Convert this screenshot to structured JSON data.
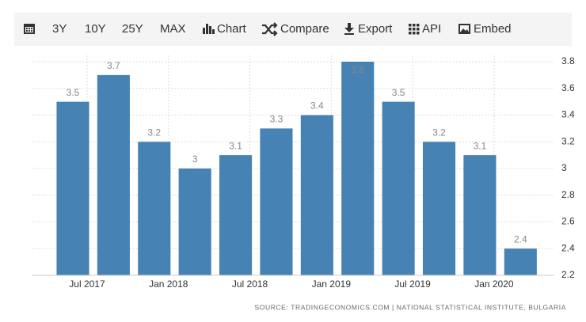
{
  "toolbar": {
    "ranges": [
      "3Y",
      "10Y",
      "25Y",
      "MAX"
    ],
    "buttons": [
      "Chart",
      "Compare",
      "Export",
      "API",
      "Embed"
    ]
  },
  "chart_data": {
    "type": "bar",
    "categories": [
      "Jul 2017",
      null,
      "Jan 2018",
      null,
      "Jul 2018",
      null,
      "Jan 2019",
      null,
      "Jul 2019",
      null,
      "Jan 2020",
      null
    ],
    "values": [
      3.5,
      3.7,
      3.2,
      3,
      3.1,
      3.3,
      3.4,
      3.8,
      3.5,
      3.2,
      3.1,
      2.4
    ],
    "color": "#4682b4",
    "ylim": [
      2.2,
      3.8
    ],
    "yticks": [
      2.2,
      2.4,
      2.6,
      2.8,
      3,
      3.2,
      3.4,
      3.6,
      3.8
    ],
    "grid": true,
    "source": "SOURCE: TRADINGECONOMICS.COM | NATIONAL STATISTICAL INSTITUTE, BULGARIA"
  }
}
